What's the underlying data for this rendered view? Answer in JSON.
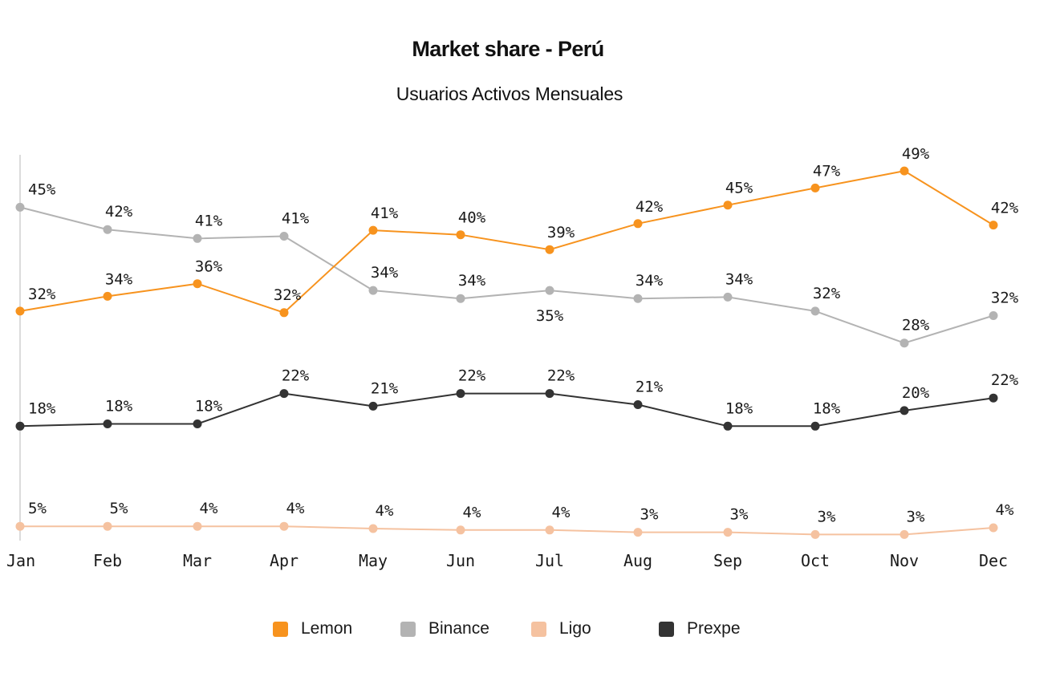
{
  "chart_data": {
    "type": "line",
    "title": "Market share - Perú",
    "subtitle": "Usuarios Activos Mensuales",
    "xlabel": "",
    "ylabel": "",
    "ylim": [
      0,
      52
    ],
    "grid": false,
    "legend_position": "bottom",
    "categories": [
      "Jan",
      "Feb",
      "Mar",
      "Apr",
      "May",
      "Jun",
      "Jul",
      "Aug",
      "Sep",
      "Oct",
      "Nov",
      "Dec"
    ],
    "series": [
      {
        "name": "Lemon",
        "color": "#f7931e",
        "values": [
          32,
          34,
          36,
          32,
          41,
          40,
          39,
          42,
          45,
          47,
          49,
          42
        ],
        "labels": [
          "32%",
          "34%",
          "36%",
          "32%",
          "41%",
          "40%",
          "39%",
          "42%",
          "45%",
          "47%",
          "49%",
          "42%"
        ],
        "plot_values": [
          30.6,
          32.6,
          34.3,
          30.4,
          41.5,
          40.9,
          38.9,
          42.4,
          44.9,
          47.2,
          49.5,
          42.2
        ]
      },
      {
        "name": "Binance",
        "color": "#b3b3b3",
        "values": [
          45,
          42,
          41,
          41,
          34,
          34,
          35,
          34,
          34,
          32,
          28,
          32
        ],
        "labels": [
          "45%",
          "42%",
          "41%",
          "41%",
          "34%",
          "34%",
          "35%",
          "34%",
          "34%",
          "32%",
          "28%",
          "32%"
        ],
        "plot_values": [
          44.6,
          41.6,
          40.4,
          40.7,
          33.4,
          32.3,
          33.4,
          32.3,
          32.5,
          30.6,
          26.3,
          30.0
        ]
      },
      {
        "name": "Ligo",
        "color": "#f5c2a0",
        "values": [
          5,
          5,
          4,
          4,
          4,
          4,
          4,
          3,
          3,
          3,
          3,
          4
        ],
        "labels": [
          "5%",
          "5%",
          "4%",
          "4%",
          "4%",
          "4%",
          "4%",
          "3%",
          "3%",
          "3%",
          "3%",
          "4%"
        ],
        "plot_values": [
          1.6,
          1.6,
          1.6,
          1.6,
          1.3,
          1.1,
          1.1,
          0.8,
          0.8,
          0.5,
          0.5,
          1.4
        ]
      },
      {
        "name": "Prexpe",
        "color": "#333333",
        "values": [
          18,
          18,
          18,
          22,
          21,
          22,
          22,
          21,
          18,
          18,
          20,
          22
        ],
        "labels": [
          "18%",
          "18%",
          "18%",
          "22%",
          "21%",
          "22%",
          "22%",
          "21%",
          "18%",
          "18%",
          "20%",
          "22%"
        ],
        "plot_values": [
          15.1,
          15.4,
          15.4,
          19.5,
          17.8,
          19.5,
          19.5,
          18.0,
          15.1,
          15.1,
          17.2,
          18.9
        ]
      }
    ]
  }
}
